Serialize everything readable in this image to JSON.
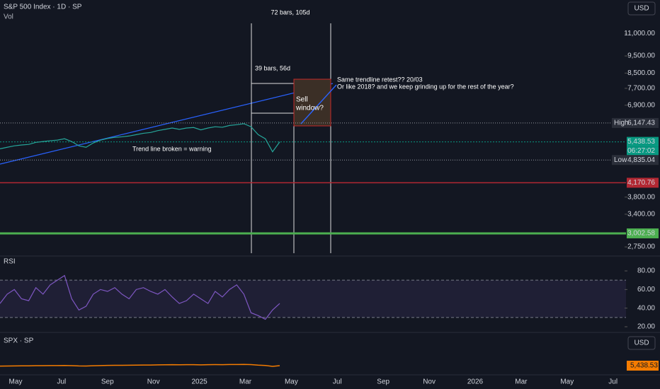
{
  "header": {
    "symbol": "S&P 500 Index · 1D · SP",
    "volume": "Vol",
    "currency": "USD"
  },
  "price_axis": {
    "log": true,
    "ylim": [
      2640,
      13660
    ],
    "ticks": [
      {
        "value": 11000,
        "label": "11,000.00"
      },
      {
        "value": 9500,
        "label": "9,500.00"
      },
      {
        "value": 8500,
        "label": "8,500.00"
      },
      {
        "value": 7700,
        "label": "7,700.00"
      },
      {
        "value": 6900,
        "label": "6,900.00"
      },
      {
        "value": 3800,
        "label": "3,800.00"
      },
      {
        "value": 3400,
        "label": "3,400.00"
      },
      {
        "value": 2750,
        "label": "2,750.00"
      }
    ],
    "levels": {
      "high": {
        "name": "High",
        "value": 6147.43,
        "label": "6,147.43"
      },
      "last": {
        "value": 5438.53,
        "label": "5,438.53",
        "countdown": "06:27:02"
      },
      "low": {
        "name": "Low",
        "value": 4835.04,
        "label": "4,835.04"
      },
      "red": {
        "value": 4170.76,
        "label": "4,170.76"
      },
      "green": {
        "value": 3002.58,
        "label": "3,002.58"
      }
    }
  },
  "price": {
    "values": [
      5200,
      5250,
      5300,
      5330,
      5350,
      5420,
      5450,
      5480,
      5500,
      5550,
      5450,
      5300,
      5250,
      5400,
      5500,
      5560,
      5600,
      5620,
      5650,
      5700,
      5750,
      5780,
      5850,
      5900,
      5950,
      5900,
      5950,
      5970,
      5880,
      5950,
      6000,
      5980,
      6050,
      6080,
      6120,
      6000,
      5700,
      5550,
      5100,
      5438.53
    ]
  },
  "annotations": {
    "range_long": "72 bars, 105d",
    "range_short": "39 bars, 56d",
    "question": [
      "Same trendline retest?? 20/03",
      "Or like 2018? and we keep grinding up for the rest of the year?"
    ],
    "sell": [
      "Sell",
      "window?"
    ],
    "trend": "Trend line broken = warning"
  },
  "rsi": {
    "title": "RSI",
    "ylim": [
      13.9,
      93.7
    ],
    "ticks": [
      {
        "value": 80,
        "label": "80.00"
      },
      {
        "value": 60,
        "label": "60.00"
      },
      {
        "value": 40,
        "label": "40.00"
      },
      {
        "value": 20,
        "label": "20.00"
      }
    ],
    "band": [
      30,
      70
    ],
    "values": [
      45,
      55,
      60,
      50,
      48,
      62,
      55,
      65,
      70,
      75,
      50,
      38,
      42,
      55,
      60,
      58,
      62,
      55,
      50,
      60,
      62,
      58,
      55,
      60,
      52,
      45,
      48,
      55,
      50,
      45,
      58,
      52,
      60,
      65,
      55,
      35,
      32,
      28,
      38,
      45
    ]
  },
  "spx": {
    "title": "SPX · SP",
    "currency": "USD",
    "label": "5,438.53"
  },
  "time_axis": [
    "May",
    "Jul",
    "Sep",
    "Nov",
    "2025",
    "Mar",
    "May",
    "Jul",
    "Sep",
    "Nov",
    "2026",
    "Mar",
    "May",
    "Jul"
  ]
}
